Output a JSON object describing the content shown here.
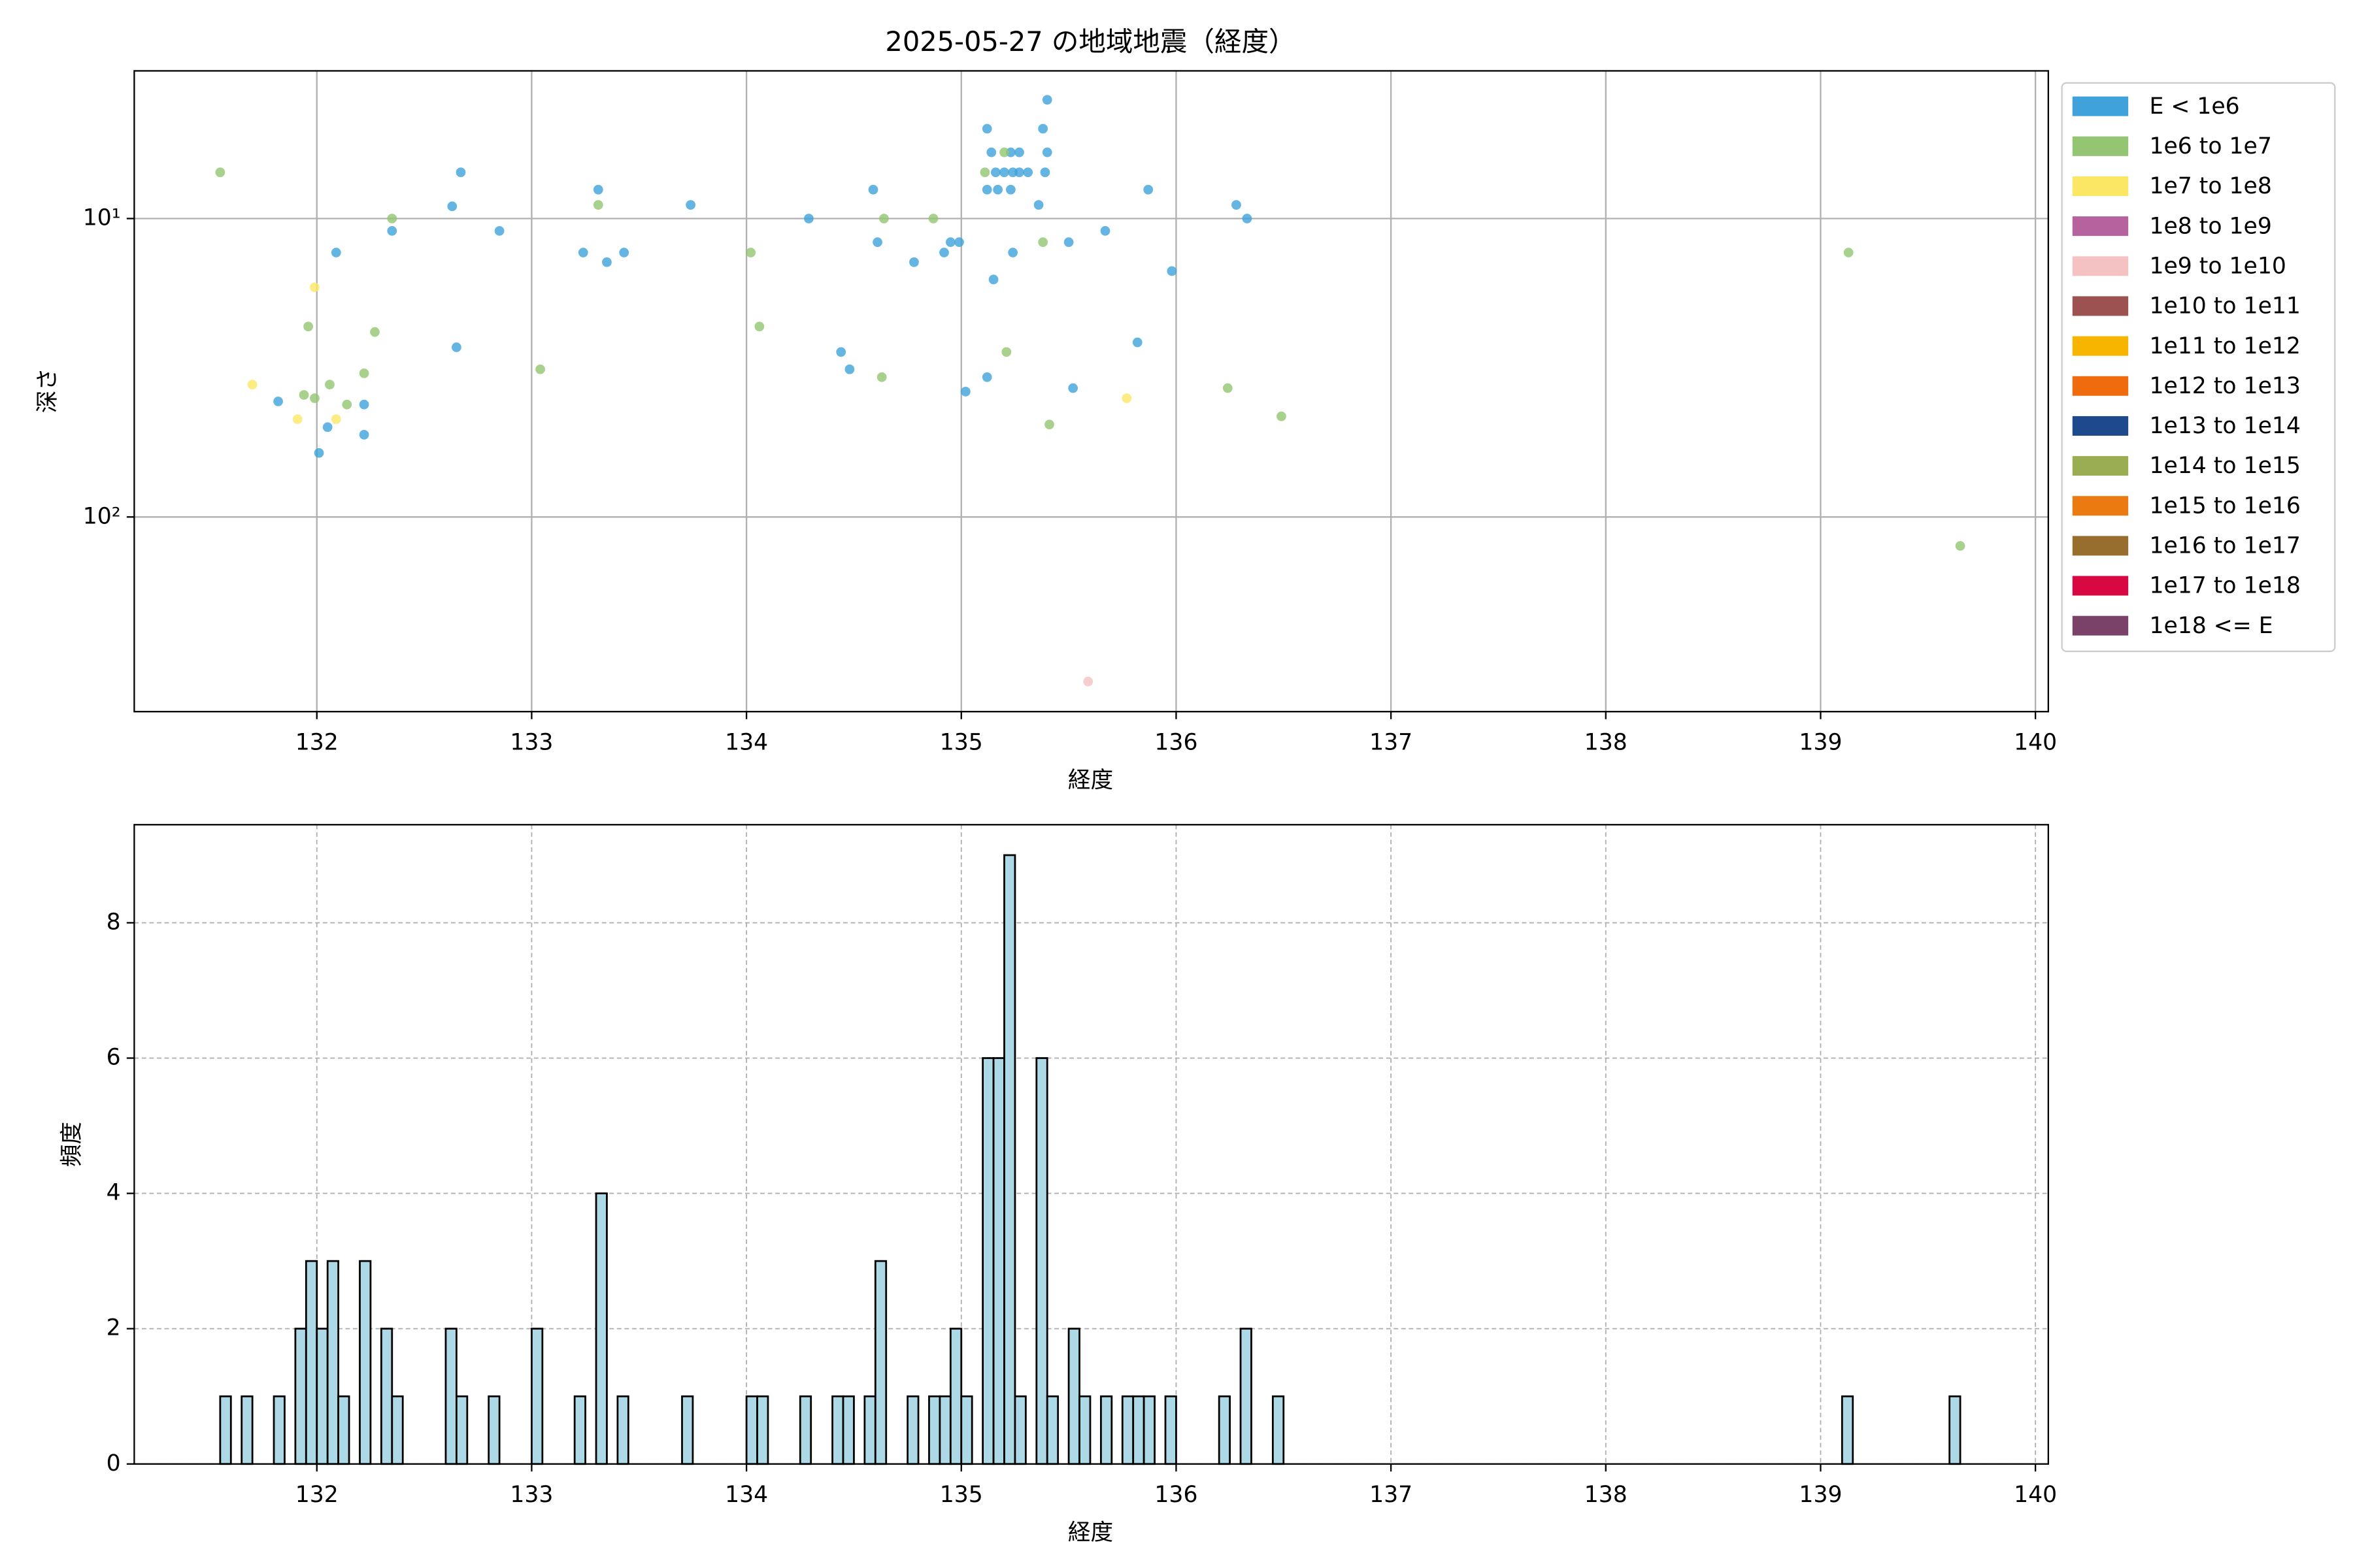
{
  "chart_data": [
    {
      "type": "scatter",
      "title": "2025-05-27 の地域地震（経度）",
      "xlabel": "経度",
      "ylabel": "深さ",
      "xlim": [
        131.15,
        140.06
      ],
      "xticks": [
        132,
        133,
        134,
        135,
        136,
        137,
        138,
        139,
        140
      ],
      "ylim": [
        3.2,
        449
      ],
      "log_y": true,
      "y_inverted": true,
      "yticks": [
        {
          "value": 10,
          "label": "10¹"
        },
        {
          "value": 100,
          "label": "10²"
        }
      ],
      "grid": true,
      "legend": "outside right",
      "series": [
        {
          "name": "E < 1e6",
          "color": "#3fa2db",
          "x": [
            131.82,
            132.01,
            132.05,
            132.09,
            132.22,
            132.22,
            132.35,
            132.63,
            132.65,
            132.67,
            132.85,
            133.24,
            133.31,
            133.35,
            133.43,
            133.74,
            134.29,
            134.44,
            134.48,
            134.59,
            134.61,
            134.78,
            134.92,
            134.95,
            134.99,
            135.02,
            135.12,
            135.14,
            135.12,
            135.12,
            135.15,
            135.16,
            135.17,
            135.2,
            135.23,
            135.24,
            135.27,
            135.23,
            135.24,
            135.27,
            135.31,
            135.36,
            135.38,
            135.4,
            135.4,
            135.39,
            135.5,
            135.52,
            135.67,
            135.82,
            135.87,
            135.98,
            136.28,
            136.33
          ],
          "values": [
            41,
            61,
            50,
            13,
            53,
            42,
            11,
            9.1,
            27,
            7,
            11,
            13,
            8,
            14,
            13,
            9,
            10,
            28,
            32,
            8,
            12,
            14,
            13,
            12,
            12,
            38,
            5,
            6,
            34,
            8,
            16,
            7,
            8,
            7,
            6,
            7,
            6,
            8,
            13,
            7,
            7,
            9,
            5,
            6,
            4,
            7,
            12,
            37,
            11,
            26,
            8,
            15,
            9,
            10
          ]
        },
        {
          "name": "1e6 to 1e7",
          "color": "#93c572",
          "x": [
            131.55,
            131.96,
            131.94,
            131.99,
            132.06,
            132.14,
            132.22,
            132.27,
            132.35,
            133.31,
            133.04,
            134.02,
            134.06,
            134.64,
            134.63,
            134.87,
            135.11,
            135.2,
            135.21,
            135.38,
            135.41,
            136.24,
            136.49,
            139.13,
            139.65
          ],
          "values": [
            7,
            23,
            39,
            40,
            36,
            42,
            33,
            24,
            10,
            9,
            32,
            13,
            23,
            10,
            34,
            10,
            7,
            6,
            28,
            12,
            49,
            37,
            46,
            13,
            125
          ]
        },
        {
          "name": "1e7 to 1e8",
          "color": "#fbe764",
          "x": [
            131.7,
            131.91,
            131.99,
            132.09,
            135.77
          ],
          "values": [
            36,
            47,
            17,
            47,
            40
          ]
        },
        {
          "name": "1e8 to 1e9",
          "color": "#b5629e",
          "x": [],
          "values": []
        },
        {
          "name": "1e9 to 1e10",
          "color": "#f4c2c2",
          "x": [
            135.59
          ],
          "values": [
            356
          ]
        },
        {
          "name": "1e10 to 1e11",
          "color": "#9b5250",
          "x": [],
          "values": []
        },
        {
          "name": "1e11 to 1e12",
          "color": "#f8b500",
          "x": [],
          "values": []
        },
        {
          "name": "1e12 to 1e13",
          "color": "#ef6b0d",
          "x": [],
          "values": []
        },
        {
          "name": "1e13 to 1e14",
          "color": "#1e4a8d",
          "x": [],
          "values": []
        },
        {
          "name": "1e14 to 1e15",
          "color": "#9aad52",
          "x": [],
          "values": []
        },
        {
          "name": "1e15 to 1e16",
          "color": "#eb7b10",
          "x": [],
          "values": []
        },
        {
          "name": "1e16 to 1e17",
          "color": "#986e2f",
          "x": [],
          "values": []
        },
        {
          "name": "1e17 to 1e18",
          "color": "#d80843",
          "x": [],
          "values": []
        },
        {
          "name": "1e18 <= E",
          "color": "#7a4169",
          "x": [],
          "values": []
        }
      ]
    },
    {
      "type": "histogram",
      "xlabel": "経度",
      "ylabel": "頻度",
      "color": "#add8e6",
      "edgecolor": "#000000",
      "xlim": [
        131.15,
        140.06
      ],
      "xticks": [
        132,
        133,
        134,
        135,
        136,
        137,
        138,
        139,
        140
      ],
      "ylim": [
        0,
        9.45
      ],
      "yticks": [
        0,
        2,
        4,
        6,
        8
      ],
      "grid": true,
      "bins": [
        131.55,
        131.6,
        131.65,
        131.7,
        131.75,
        131.8,
        131.85,
        131.9,
        131.95,
        132,
        132.05,
        132.1,
        132.15,
        132.2,
        132.25,
        132.3,
        132.35,
        132.4,
        132.45,
        132.5,
        132.55,
        132.6,
        132.65,
        132.7,
        132.75,
        132.8,
        132.85,
        132.9,
        132.95,
        133,
        133.05,
        133.1,
        133.15,
        133.2,
        133.25,
        133.3,
        133.35,
        133.4,
        133.45,
        133.5,
        133.55,
        133.6,
        133.65,
        133.7,
        133.75,
        133.8,
        133.85,
        133.9,
        133.95,
        134,
        134.05,
        134.1,
        134.15,
        134.2,
        134.25,
        134.3,
        134.35,
        134.4,
        134.45,
        134.5,
        134.55,
        134.6,
        134.65,
        134.7,
        134.75,
        134.8,
        134.85,
        134.9,
        134.95,
        135,
        135.05,
        135.1,
        135.15,
        135.2,
        135.25,
        135.3,
        135.35,
        135.4,
        135.45,
        135.5,
        135.55,
        135.6,
        135.65,
        135.7,
        135.75,
        135.8,
        135.85,
        135.9,
        135.95,
        136,
        136.05,
        136.1,
        136.15,
        136.2,
        136.25,
        136.3,
        136.35,
        136.4,
        136.45,
        136.5,
        136.55,
        136.6,
        136.65,
        136.7,
        136.75,
        136.8,
        136.85,
        136.9,
        136.95,
        137,
        137.05,
        137.1,
        137.15,
        137.2,
        137.25,
        137.3,
        137.35,
        137.4,
        137.45,
        137.5,
        137.55,
        137.6,
        137.65,
        137.7,
        137.75,
        137.8,
        137.85,
        137.9,
        137.95,
        138,
        138.05,
        138.1,
        138.15,
        138.2,
        138.25,
        138.3,
        138.35,
        138.4,
        138.45,
        138.5,
        138.55,
        138.6,
        138.65,
        138.7,
        138.75,
        138.8,
        138.85,
        138.9,
        138.95,
        139,
        139.05,
        139.1,
        139.15,
        139.2,
        139.25,
        139.3,
        139.35,
        139.4,
        139.45,
        139.5,
        139.55,
        139.6,
        139.65
      ],
      "counts": [
        1,
        0,
        1,
        0,
        0,
        1,
        0,
        2,
        3,
        2,
        3,
        1,
        0,
        3,
        0,
        2,
        1,
        0,
        0,
        0,
        0,
        2,
        1,
        0,
        0,
        1,
        0,
        0,
        0,
        2,
        0,
        0,
        0,
        1,
        0,
        4,
        0,
        1,
        0,
        0,
        0,
        0,
        0,
        1,
        0,
        0,
        0,
        0,
        0,
        1,
        1,
        0,
        0,
        0,
        1,
        0,
        0,
        1,
        1,
        0,
        1,
        3,
        0,
        0,
        1,
        0,
        1,
        1,
        2,
        1,
        0,
        6,
        6,
        9,
        1,
        0,
        6,
        1,
        0,
        2,
        1,
        0,
        1,
        0,
        1,
        1,
        1,
        0,
        1,
        0,
        0,
        0,
        0,
        1,
        0,
        2,
        0,
        0,
        1,
        0,
        0,
        0,
        0,
        0,
        0,
        0,
        0,
        0,
        0,
        0,
        0,
        0,
        0,
        0,
        0,
        0,
        0,
        0,
        0,
        0,
        0,
        0,
        0,
        0,
        0,
        0,
        0,
        0,
        0,
        0,
        0,
        0,
        0,
        0,
        0,
        0,
        0,
        0,
        0,
        0,
        0,
        0,
        0,
        0,
        0,
        0,
        0,
        0,
        0,
        0,
        0,
        1,
        0,
        0,
        0,
        0,
        0,
        0,
        0,
        0,
        0,
        1
      ]
    }
  ]
}
